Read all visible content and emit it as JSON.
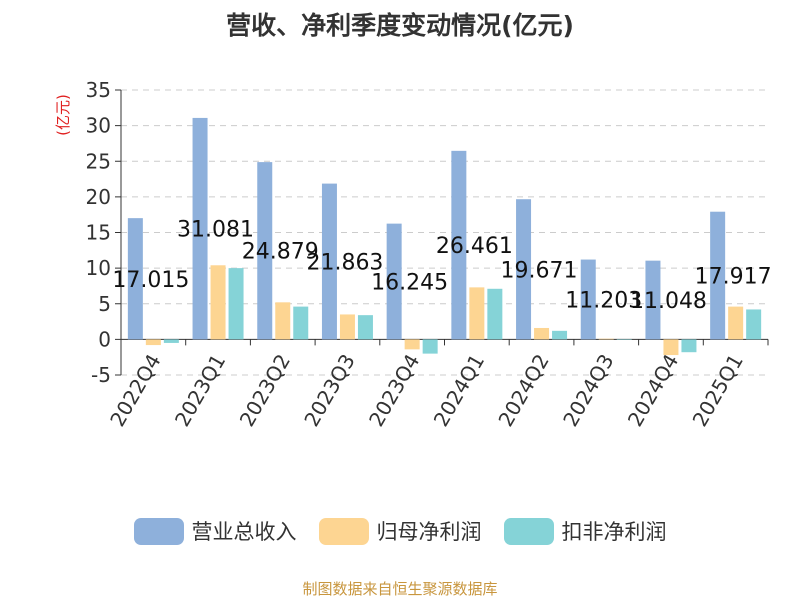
{
  "chart_data": {
    "type": "bar",
    "title": "营收、净利季度变动情况(亿元)",
    "ylabel": "(亿元)",
    "xlabel": "",
    "categories": [
      "2022Q4",
      "2023Q1",
      "2023Q2",
      "2023Q3",
      "2023Q4",
      "2024Q1",
      "2024Q2",
      "2024Q3",
      "2024Q4",
      "2025Q1"
    ],
    "series": [
      {
        "name": "营业总收入",
        "color": "#8eb0db",
        "values": [
          17.015,
          31.081,
          24.879,
          21.863,
          16.245,
          26.461,
          19.671,
          11.203,
          11.048,
          17.917
        ]
      },
      {
        "name": "归母净利润",
        "color": "#fdd592",
        "values": [
          -0.8,
          10.4,
          5.2,
          3.5,
          -1.4,
          7.3,
          1.6,
          0.1,
          -2.2,
          4.6
        ]
      },
      {
        "name": "扣非净利润",
        "color": "#85d3d7",
        "values": [
          -0.5,
          10.0,
          4.6,
          3.4,
          -2.0,
          7.1,
          1.2,
          0.05,
          -1.8,
          4.2
        ]
      }
    ],
    "data_labels": [
      "17.015",
      "31.081",
      "24.879",
      "21.863",
      "16.245",
      "26.461",
      "19.671",
      "11.203",
      "11.048",
      "17.917"
    ],
    "ylim": [
      -5,
      35
    ],
    "yticks": [
      -5,
      0,
      5,
      10,
      15,
      20,
      25,
      30,
      35
    ],
    "grid": true,
    "legend_position": "bottom"
  },
  "source": "制图数据来自恒生聚源数据库"
}
